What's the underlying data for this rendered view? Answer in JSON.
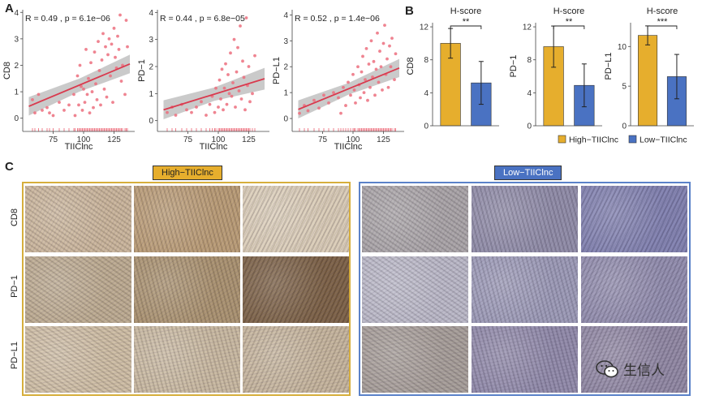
{
  "panels": {
    "a": "A",
    "b": "B",
    "c": "C"
  },
  "chart_data": [
    {
      "type": "scatter",
      "ylabel": "CD8",
      "xlabel": "TIIClnc",
      "annotation": "R = 0.49 , p = 6.1e−06",
      "xlim": [
        50,
        142
      ],
      "ylim": [
        -0.5,
        4.1
      ],
      "xticks": [
        75,
        100,
        125
      ],
      "yticks": [
        0,
        1,
        2,
        3,
        4
      ],
      "fit": {
        "x": [
          55,
          138
        ],
        "y": [
          0.45,
          2.05
        ],
        "band": [
          0.35,
          0.55,
          0.35
        ]
      },
      "points": [
        [
          58,
          0.7
        ],
        [
          60,
          0.2
        ],
        [
          63,
          0.9
        ],
        [
          66,
          0.3
        ],
        [
          70,
          0.4
        ],
        [
          72,
          0.2
        ],
        [
          75,
          0.1
        ],
        [
          80,
          0.6
        ],
        [
          84,
          0.3
        ],
        [
          88,
          0.5
        ],
        [
          92,
          0.9
        ],
        [
          93,
          0.1
        ],
        [
          95,
          1.6
        ],
        [
          96,
          0.5
        ],
        [
          97,
          2.0
        ],
        [
          98,
          1.2
        ],
        [
          99,
          0.3
        ],
        [
          100,
          1.1
        ],
        [
          101,
          0.6
        ],
        [
          102,
          2.6
        ],
        [
          103,
          0.9
        ],
        [
          104,
          1.5
        ],
        [
          105,
          0.2
        ],
        [
          106,
          2.1
        ],
        [
          107,
          1.0
        ],
        [
          108,
          0.4
        ],
        [
          109,
          2.5
        ],
        [
          110,
          1.3
        ],
        [
          111,
          0.7
        ],
        [
          112,
          2.9
        ],
        [
          113,
          1.8
        ],
        [
          114,
          0.5
        ],
        [
          115,
          2.2
        ],
        [
          116,
          3.2
        ],
        [
          117,
          1.1
        ],
        [
          118,
          2.7
        ],
        [
          119,
          0.8
        ],
        [
          120,
          2.4
        ],
        [
          121,
          3.0
        ],
        [
          122,
          1.6
        ],
        [
          123,
          2.8
        ],
        [
          124,
          0.6
        ],
        [
          125,
          3.4
        ],
        [
          126,
          2.3
        ],
        [
          127,
          1.9
        ],
        [
          128,
          3.1
        ],
        [
          129,
          2.6
        ],
        [
          130,
          3.9
        ],
        [
          131,
          1.4
        ],
        [
          132,
          2.0
        ],
        [
          134,
          0.9
        ],
        [
          135,
          3.7
        ],
        [
          136,
          2.7
        ]
      ]
    },
    {
      "type": "scatter",
      "ylabel": "PD−1",
      "xlabel": "TIIClnc",
      "annotation": "R = 0.44 , p = 6.8e−05",
      "xlim": [
        50,
        142
      ],
      "ylim": [
        -0.4,
        4.1
      ],
      "xticks": [
        75,
        100,
        125
      ],
      "yticks": [
        0,
        1,
        2,
        3,
        4
      ],
      "fit": {
        "x": [
          55,
          138
        ],
        "y": [
          0.4,
          1.55
        ],
        "band": [
          0.35,
          0.55,
          0.4
        ]
      },
      "points": [
        [
          58,
          0.3
        ],
        [
          62,
          0.5
        ],
        [
          65,
          0.2
        ],
        [
          70,
          0.6
        ],
        [
          74,
          0.4
        ],
        [
          78,
          0.3
        ],
        [
          82,
          0.5
        ],
        [
          86,
          0.7
        ],
        [
          90,
          0.2
        ],
        [
          93,
          0.6
        ],
        [
          95,
          0.9
        ],
        [
          97,
          0.3
        ],
        [
          98,
          1.2
        ],
        [
          100,
          0.5
        ],
        [
          101,
          1.5
        ],
        [
          102,
          0.8
        ],
        [
          103,
          1.9
        ],
        [
          104,
          0.4
        ],
        [
          105,
          1.2
        ],
        [
          106,
          2.1
        ],
        [
          107,
          0.6
        ],
        [
          108,
          1.7
        ],
        [
          109,
          1.0
        ],
        [
          110,
          2.5
        ],
        [
          111,
          0.9
        ],
        [
          112,
          1.4
        ],
        [
          113,
          3.0
        ],
        [
          114,
          0.5
        ],
        [
          115,
          1.8
        ],
        [
          116,
          2.7
        ],
        [
          117,
          1.1
        ],
        [
          118,
          3.5
        ],
        [
          119,
          0.8
        ],
        [
          120,
          2.2
        ],
        [
          121,
          1.6
        ],
        [
          122,
          0.4
        ],
        [
          123,
          3.8
        ],
        [
          124,
          1.3
        ],
        [
          125,
          2.0
        ],
        [
          126,
          0.7
        ],
        [
          128,
          1.0
        ],
        [
          130,
          2.4
        ]
      ]
    },
    {
      "type": "scatter",
      "ylabel": "PD−L1",
      "xlabel": "TIIClnc",
      "annotation": "R = 0.52 , p = 1.4e−06",
      "xlim": [
        50,
        142
      ],
      "ylim": [
        -0.5,
        4.2
      ],
      "xticks": [
        75,
        100,
        125
      ],
      "yticks": [
        0,
        1,
        2,
        3,
        4
      ],
      "fit": {
        "x": [
          55,
          138
        ],
        "y": [
          0.35,
          1.95
        ],
        "band": [
          0.35,
          0.5,
          0.35
        ]
      },
      "points": [
        [
          56,
          0.2
        ],
        [
          60,
          0.5
        ],
        [
          63,
          0.3
        ],
        [
          68,
          0.7
        ],
        [
          72,
          0.4
        ],
        [
          76,
          0.9
        ],
        [
          80,
          0.6
        ],
        [
          84,
          1.0
        ],
        [
          88,
          0.8
        ],
        [
          90,
          0.2
        ],
        [
          92,
          1.2
        ],
        [
          94,
          0.5
        ],
        [
          96,
          1.4
        ],
        [
          98,
          0.9
        ],
        [
          100,
          1.7
        ],
        [
          101,
          1.1
        ],
        [
          102,
          0.6
        ],
        [
          104,
          2.0
        ],
        [
          105,
          1.3
        ],
        [
          106,
          0.8
        ],
        [
          107,
          1.8
        ],
        [
          108,
          2.4
        ],
        [
          109,
          1.0
        ],
        [
          110,
          1.5
        ],
        [
          111,
          2.7
        ],
        [
          112,
          0.7
        ],
        [
          113,
          2.1
        ],
        [
          114,
          1.2
        ],
        [
          115,
          3.0
        ],
        [
          116,
          1.6
        ],
        [
          117,
          2.2
        ],
        [
          118,
          0.9
        ],
        [
          119,
          1.9
        ],
        [
          120,
          3.3
        ],
        [
          121,
          1.4
        ],
        [
          122,
          2.6
        ],
        [
          123,
          2.0
        ],
        [
          124,
          1.1
        ],
        [
          125,
          2.9
        ],
        [
          126,
          3.6
        ],
        [
          127,
          1.7
        ],
        [
          128,
          2.3
        ],
        [
          129,
          1.2
        ],
        [
          130,
          2.8
        ],
        [
          131,
          2.0
        ],
        [
          132,
          3.1
        ],
        [
          134,
          1.5
        ],
        [
          135,
          2.5
        ]
      ]
    },
    {
      "type": "bar",
      "title": "H-score",
      "ylabel": "CD8",
      "categories": [
        "High−TIIClnc",
        "Low−TIIClnc"
      ],
      "values": [
        10.0,
        5.2
      ],
      "errors": [
        1.8,
        2.6
      ],
      "ylim": [
        0,
        12.5
      ],
      "yticks": [
        0,
        4,
        8,
        12
      ],
      "significance": "**"
    },
    {
      "type": "bar",
      "title": "H-score",
      "ylabel": "PD−1",
      "categories": [
        "High−TIIClnc",
        "Low−TIIClnc"
      ],
      "values": [
        9.6,
        4.9
      ],
      "errors": [
        2.5,
        2.6
      ],
      "ylim": [
        0,
        12.5
      ],
      "yticks": [
        0,
        4,
        8,
        12
      ],
      "significance": "**"
    },
    {
      "type": "bar",
      "title": "H-score",
      "ylabel": "PD−L1",
      "categories": [
        "High−TIIClnc",
        "Low−TIIClnc"
      ],
      "values": [
        11.4,
        6.2
      ],
      "errors": [
        1.2,
        2.8
      ],
      "ylim": [
        0,
        13
      ],
      "yticks": [
        0,
        5,
        10
      ],
      "significance": "***"
    }
  ],
  "legend": {
    "items": [
      {
        "label": "High−TIIClnc",
        "color": "#e6ae2d"
      },
      {
        "label": "Low−TIIClnc",
        "color": "#4a72c2"
      }
    ],
    "placement": "bottom-right"
  },
  "ihc": {
    "groups": [
      {
        "label": "High−TIIClnc",
        "border": "#d6ae3c",
        "label_bg": "#e6ae2d"
      },
      {
        "label": "Low−TIIClnc",
        "border": "#5b82c9",
        "label_bg": "#4a72c2"
      }
    ],
    "rows": [
      "CD8",
      "PD−1",
      "PD−L1"
    ],
    "tile_colors": {
      "high": [
        [
          "#c9b49a",
          "#b89a74",
          "#d9cbb6"
        ],
        [
          "#bba98f",
          "#a8906e",
          "#7a5f44"
        ],
        [
          "#cdbca3",
          "#c7b79f",
          "#c4b39b"
        ]
      ],
      "low": [
        [
          "#a8a3a6",
          "#8e8aa6",
          "#7f7fae"
        ],
        [
          "#b9b7c6",
          "#9a98b5",
          "#908bac"
        ],
        [
          "#a59c97",
          "#8f88a8",
          "#8f86a2"
        ]
      ]
    }
  },
  "watermark": {
    "text": "生信人",
    "icon": "wechat-icon"
  },
  "colors": {
    "scatter_point": "#ec6f7e",
    "fit_line": "#d93a4e",
    "band": "#b8b8b8",
    "axis": "#444444"
  }
}
